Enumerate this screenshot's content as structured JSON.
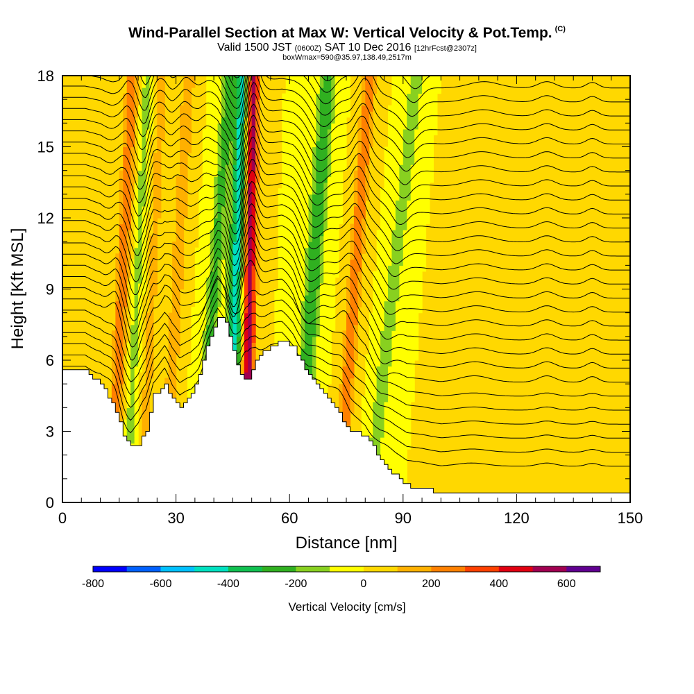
{
  "header": {
    "title": "Wind-Parallel Section at Max W: Vertical Velocity & Pot.Temp.",
    "copyright": "(C)",
    "valid_prefix": "Valid 1500 JST",
    "valid_utc": "(0600Z)",
    "valid_date": "SAT 10 Dec 2016",
    "forecast": "[12hrFcst@2307z]",
    "box_info": "boxWmax=590@35.97,138.49,2517m"
  },
  "chart_data": {
    "type": "heatmap",
    "xlabel": "Distance [nm]",
    "ylabel": "Height [Kft MSL]",
    "xlim": [
      0,
      150
    ],
    "ylim": [
      0,
      18
    ],
    "x_ticks": [
      0,
      30,
      60,
      90,
      120,
      150
    ],
    "y_ticks": [
      0,
      3,
      6,
      9,
      12,
      15,
      18
    ],
    "x_tick_labels": [
      "0",
      "30",
      "60",
      "90",
      "120",
      "150"
    ],
    "y_tick_labels": [
      "0",
      "3",
      "6",
      "9",
      "12",
      "15",
      "18"
    ],
    "terrain_profile": [
      [
        0,
        5.5
      ],
      [
        6,
        5.5
      ],
      [
        10,
        5.0
      ],
      [
        14,
        3.8
      ],
      [
        16,
        2.8
      ],
      [
        18,
        2.3
      ],
      [
        20,
        2.4
      ],
      [
        22,
        3.0
      ],
      [
        24,
        4.5
      ],
      [
        27,
        5.0
      ],
      [
        29,
        4.3
      ],
      [
        31,
        4.0
      ],
      [
        34,
        4.6
      ],
      [
        36,
        5.3
      ],
      [
        38,
        6.5
      ],
      [
        41,
        7.8
      ],
      [
        43,
        7.6
      ],
      [
        45,
        6.3
      ],
      [
        47,
        5.3
      ],
      [
        49,
        5.2
      ],
      [
        51,
        6.0
      ],
      [
        55,
        6.6
      ],
      [
        58,
        6.8
      ],
      [
        61,
        6.5
      ],
      [
        65,
        5.3
      ],
      [
        69,
        4.6
      ],
      [
        73,
        3.7
      ],
      [
        76,
        3.0
      ],
      [
        80,
        2.8
      ],
      [
        84,
        1.8
      ],
      [
        88,
        1.1
      ],
      [
        91,
        0.7
      ],
      [
        95,
        0.6
      ],
      [
        100,
        0.4
      ],
      [
        110,
        0.4
      ],
      [
        150,
        0.4
      ]
    ],
    "updraft_bands": [
      {
        "x_base": 13,
        "slope": 0.3,
        "width": 1.6,
        "w": 300
      },
      {
        "x_base": 21,
        "slope": 0.3,
        "width": 1.4,
        "w": 150
      },
      {
        "x_base": 27,
        "slope": 0.35,
        "width": 1.6,
        "w": 200
      },
      {
        "x_base": 48.5,
        "slope": 0.1,
        "width": 1.6,
        "w": 590
      },
      {
        "x_base": 73,
        "slope": 0.45,
        "width": 1.7,
        "w": 300
      },
      {
        "x_base": 108,
        "slope": 0.2,
        "width": 3.5,
        "w": 80
      },
      {
        "x_base": 128,
        "slope": 0.0,
        "width": 2.0,
        "w": 80
      },
      {
        "x_base": 140,
        "slope": 0.0,
        "width": 1.4,
        "w": 70
      }
    ],
    "downdraft_bands": [
      {
        "x_base": 17,
        "slope": 0.3,
        "width": 1.2,
        "w": -150
      },
      {
        "x_base": 36,
        "slope": 0.45,
        "width": 1.8,
        "w": -250
      },
      {
        "x_base": 44,
        "slope": 0.2,
        "width": 2.0,
        "w": -450
      },
      {
        "x_base": 62,
        "slope": 0.45,
        "width": 2.2,
        "w": -300
      },
      {
        "x_base": 81,
        "slope": 0.7,
        "width": 1.8,
        "w": -200
      }
    ],
    "theta_contours": {
      "count": 32,
      "color": "#000000"
    },
    "colorbar": {
      "label": "Vertical Velocity [cm/s]",
      "min": -800,
      "max": 700,
      "step": 100,
      "tick_values": [
        -800,
        -600,
        -400,
        -200,
        0,
        200,
        400,
        600
      ],
      "tick_labels": [
        "-800",
        "-600",
        "-400",
        "-200",
        "0",
        "200",
        "400",
        "600"
      ],
      "colors": [
        "#0000ff",
        "#0060ff",
        "#00c0ff",
        "#00e0c0",
        "#10c050",
        "#30b020",
        "#88d020",
        "#ffff00",
        "#ffd800",
        "#ffb000",
        "#ff8000",
        "#ff4000",
        "#e00010",
        "#a00050",
        "#600090"
      ]
    },
    "grid": false
  }
}
